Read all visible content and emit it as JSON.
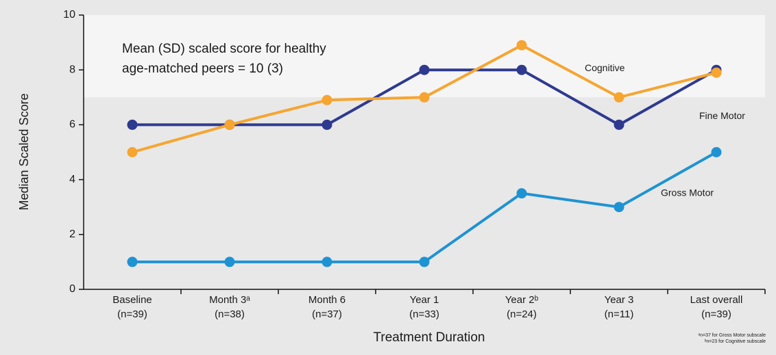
{
  "chart_data": {
    "type": "line",
    "ylabel": "Median Scaled Score",
    "xlabel": "Treatment Duration",
    "categories": [
      "Baseline",
      "Month 3ᵃ",
      "Month 6",
      "Year 1",
      "Year 2ᵇ",
      "Year 3",
      "Last overall"
    ],
    "category_counts": [
      "(n=39)",
      "(n=38)",
      "(n=37)",
      "(n=33)",
      "(n=24)",
      "(n=11)",
      "(n=39)"
    ],
    "series": [
      {
        "name": "Fine Motor",
        "color": "#2e3a8f",
        "values": [
          6,
          6,
          6,
          8,
          8,
          6,
          8
        ]
      },
      {
        "name": "Cognitive",
        "color": "#f6a531",
        "values": [
          5,
          6,
          6.9,
          7,
          8.9,
          7,
          7.9
        ]
      },
      {
        "name": "Gross Motor",
        "color": "#1e93d3",
        "values": [
          1,
          1,
          1,
          1,
          3.5,
          3,
          5
        ]
      }
    ],
    "annotation": [
      "Mean (SD) scaled score for healthy",
      "age-matched peers = 10 (3)"
    ],
    "band": [
      7,
      10
    ],
    "footnotes": [
      "ᵃn=37 for Gross Motor subscale",
      "ᵇn=23 for Cognitive subscale"
    ],
    "ylim": [
      0,
      10
    ],
    "yticks": [
      0,
      2,
      4,
      6,
      8,
      10
    ]
  }
}
